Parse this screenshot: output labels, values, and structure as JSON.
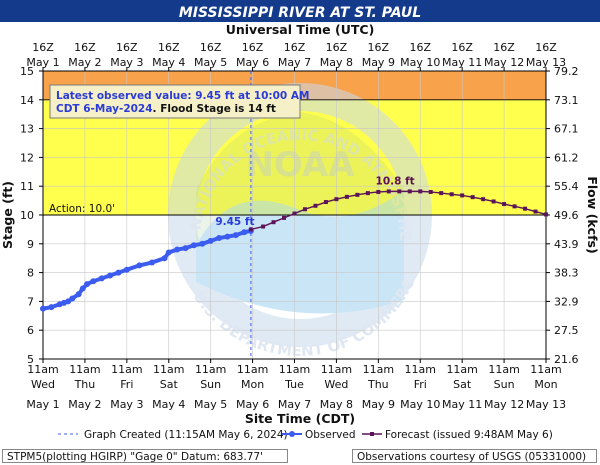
{
  "colors": {
    "title_bar": "#143a8c",
    "major_band": "#f9a24c",
    "minor_band": "#ffff4d",
    "observed": "#3c5cf0",
    "forecast": "#5c1458",
    "axis_text": "#111111",
    "observed_label": "#2a3bd8",
    "forecast_label": "#5c0f50"
  },
  "chart_data": {
    "type": "line",
    "title": "MISSISSIPPI RIVER AT ST. PAUL",
    "top_axis_title": "Universal Time (UTC)",
    "xlabel": "Site Time (CDT)",
    "ylabel": "Stage (ft)",
    "y2label": "Flow (kcfs)",
    "x_range": [
      "May 1 11am",
      "May 13 11am"
    ],
    "ylim": [
      5,
      15
    ],
    "y_ticks": [
      5,
      6,
      7,
      8,
      9,
      10,
      11,
      12,
      13,
      14,
      15
    ],
    "y2_ticks": [
      "21.6",
      "27.5",
      "32.9",
      "38.3",
      "43.9",
      "49.6",
      "55.4",
      "61.2",
      "67.1",
      "73.1",
      "79.2"
    ],
    "top_ticks": [
      {
        "time": "16Z",
        "date": "May  1"
      },
      {
        "time": "16Z",
        "date": "May  2"
      },
      {
        "time": "16Z",
        "date": "May  3"
      },
      {
        "time": "16Z",
        "date": "May  4"
      },
      {
        "time": "16Z",
        "date": "May  5"
      },
      {
        "time": "16Z",
        "date": "May  6"
      },
      {
        "time": "16Z",
        "date": "May  7"
      },
      {
        "time": "16Z",
        "date": "May  8"
      },
      {
        "time": "16Z",
        "date": "May  9"
      },
      {
        "time": "16Z",
        "date": "May 10"
      },
      {
        "time": "16Z",
        "date": "May 11"
      },
      {
        "time": "16Z",
        "date": "May 12"
      },
      {
        "time": "16Z",
        "date": "May 13"
      }
    ],
    "bottom_ticks": [
      {
        "time": "11am",
        "day": "Wed",
        "date": "May 1"
      },
      {
        "time": "11am",
        "day": "Thu",
        "date": "May 2"
      },
      {
        "time": "11am",
        "day": "Fri",
        "date": "May 3"
      },
      {
        "time": "11am",
        "day": "Sat",
        "date": "May 4"
      },
      {
        "time": "11am",
        "day": "Sun",
        "date": "May 5"
      },
      {
        "time": "11am",
        "day": "Mon",
        "date": "May 6"
      },
      {
        "time": "11am",
        "day": "Tue",
        "date": "May 7"
      },
      {
        "time": "11am",
        "day": "Wed",
        "date": "May 8"
      },
      {
        "time": "11am",
        "day": "Thu",
        "date": "May 9"
      },
      {
        "time": "11am",
        "day": "Fri",
        "date": "May 10"
      },
      {
        "time": "11am",
        "day": "Sat",
        "date": "May 11"
      },
      {
        "time": "11am",
        "day": "Sun",
        "date": "May 12"
      },
      {
        "time": "11am",
        "day": "Mon",
        "date": "May 13"
      }
    ],
    "bands": [
      {
        "name": "major",
        "from": 14,
        "to": 15
      },
      {
        "name": "minor",
        "from": 10,
        "to": 14
      }
    ],
    "action_stage": 10.0,
    "action_label": "Action: 10.0'",
    "flood_stage": 14,
    "observed_label": "9.45 ft",
    "forecast_peak_label": "10.8 ft",
    "info_box": {
      "line1": "Latest observed value: 9.45 ft at 10:00 AM",
      "line2_date": "CDT 6-May-2024",
      "line2_rest": ". Flood Stage is 14 ft"
    },
    "series": [
      {
        "name": "Observed",
        "x": [
          0,
          0.2,
          0.4,
          0.5,
          0.6,
          0.7,
          0.85,
          0.95,
          1.05,
          1.2,
          1.4,
          1.6,
          1.8,
          2.0,
          2.3,
          2.6,
          2.9,
          3.0,
          3.2,
          3.4,
          3.6,
          3.8,
          4.0,
          4.2,
          4.4,
          4.6,
          4.8,
          4.96
        ],
        "values": [
          6.75,
          6.8,
          6.9,
          6.95,
          7.0,
          7.1,
          7.25,
          7.45,
          7.6,
          7.7,
          7.8,
          7.9,
          8.0,
          8.1,
          8.25,
          8.35,
          8.5,
          8.7,
          8.8,
          8.85,
          8.95,
          9.0,
          9.1,
          9.2,
          9.25,
          9.3,
          9.4,
          9.45
        ]
      },
      {
        "name": "Forecast (issued 9:48AM May 6)",
        "x": [
          4.96,
          5.25,
          5.5,
          5.75,
          6.0,
          6.25,
          6.5,
          6.75,
          7.0,
          7.25,
          7.5,
          7.75,
          8.0,
          8.25,
          8.5,
          8.75,
          9.0,
          9.25,
          9.5,
          9.75,
          10.0,
          10.25,
          10.5,
          10.75,
          11.0,
          11.25,
          11.5,
          11.75,
          12.0
        ],
        "values": [
          9.5,
          9.6,
          9.75,
          9.9,
          10.05,
          10.2,
          10.32,
          10.45,
          10.55,
          10.63,
          10.7,
          10.76,
          10.8,
          10.82,
          10.82,
          10.82,
          10.82,
          10.8,
          10.76,
          10.72,
          10.68,
          10.62,
          10.55,
          10.47,
          10.38,
          10.3,
          10.22,
          10.12,
          10.02
        ]
      }
    ],
    "created_x": 4.96
  },
  "legend": {
    "created": "Graph Created (11:15AM May 6, 2024)",
    "observed": "Observed",
    "forecast": "Forecast (issued 9:48AM May 6)"
  },
  "footer": {
    "left": "STPM5(plotting HGIRP) \"Gage 0\" Datum: 683.77'",
    "right": "Observations courtesy of USGS (05331000)"
  },
  "watermark": {
    "logo_text": "NOAA",
    "ring_text": "NATIONAL OCEANIC AND ATMOSPHERIC ADMINISTRATION",
    "bottom_text": "U.S. DEPARTMENT OF COMMERCE"
  }
}
